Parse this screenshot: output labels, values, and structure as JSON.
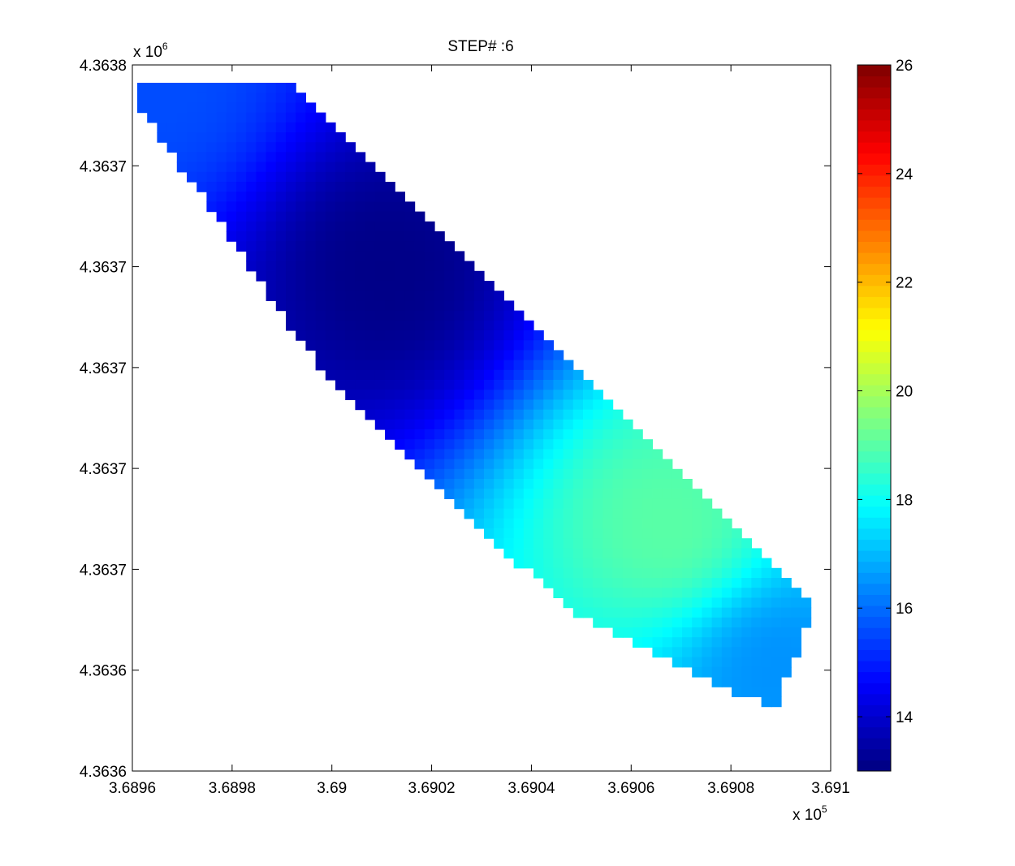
{
  "chart_data": [
    {
      "type": "heatmap",
      "title": "STEP# :6",
      "xlabel": "",
      "ylabel": "",
      "x_multiplier_label": "x 10",
      "x_multiplier_exp": "5",
      "y_multiplier_label": "x 10",
      "y_multiplier_exp": "6",
      "xlim": [
        3.6896,
        3.691
      ],
      "x_tick_values": [
        3.6896,
        3.6898,
        3.69,
        3.6902,
        3.6904,
        3.6906,
        3.6908,
        3.691
      ],
      "x_tick_labels": [
        "3.6896",
        "3.6898",
        "3.69",
        "3.6902",
        "3.6904",
        "3.6906",
        "3.6908",
        "3.691"
      ],
      "y_tick_labels": [
        "4.3638",
        "4.3637",
        "4.3637",
        "4.3637",
        "4.3637",
        "4.3637",
        "4.3636",
        "4.3636"
      ],
      "colormap": "jet",
      "color_range": [
        13,
        26
      ],
      "colorbar_ticks": [
        14,
        16,
        18,
        20,
        22,
        24,
        26
      ],
      "colorbar_tick_labels": [
        "14",
        "16",
        "18",
        "20",
        "22",
        "24",
        "26"
      ],
      "field_description": "values over a diagonal band; minimum approx 13.1 near x=3.6901, maximum approx 19 near x=3.69068",
      "field_features": [
        {
          "x": 3.69011,
          "y_frac": 0.71,
          "value": 13.1
        },
        {
          "x": 3.69067,
          "y_frac": 0.35,
          "value": 19.0
        },
        {
          "x": 3.68965,
          "y_frac": 0.97,
          "value": 15.6
        },
        {
          "x": 3.6909,
          "y_frac": 0.14,
          "value": 16.5
        }
      ]
    }
  ]
}
